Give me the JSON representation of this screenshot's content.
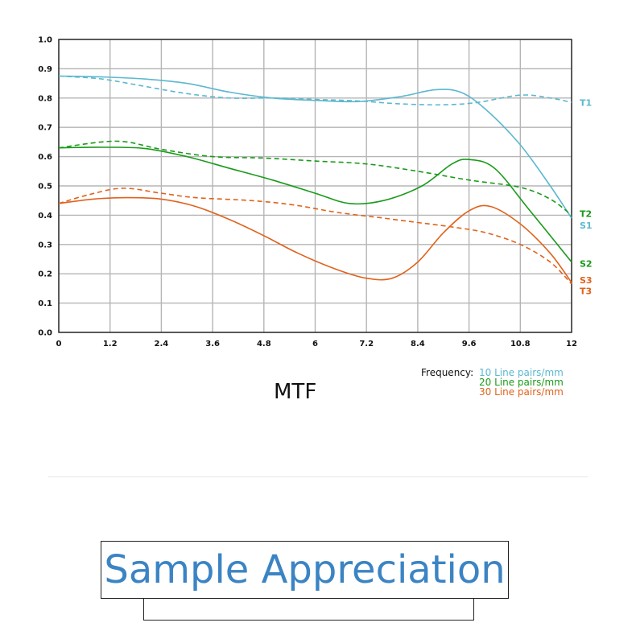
{
  "chart_data": {
    "type": "line",
    "title": "MTF",
    "xlabel": "",
    "ylabel": "",
    "xlim": [
      0,
      12
    ],
    "ylim": [
      0,
      1.0
    ],
    "x_ticks": [
      "0",
      "1.2",
      "2.4",
      "3.6",
      "4.8",
      "6",
      "7.2",
      "8.4",
      "9.6",
      "10.8",
      "12"
    ],
    "y_ticks": [
      "0.0",
      "0.1",
      "0.2",
      "0.3",
      "0.4",
      "0.5",
      "0.6",
      "0.7",
      "0.8",
      "0.9",
      "1.0"
    ],
    "grid": true,
    "legend": {
      "label": "Frequency:",
      "items": [
        "10 Line pairs/mm",
        "20 Line pairs/mm",
        "30 Line pairs/mm"
      ],
      "colors": [
        "#5bb8cf",
        "#1a9a1a",
        "#e0621c"
      ]
    },
    "series": [
      {
        "name": "S1",
        "style": "solid",
        "color": "#5bb8cf",
        "label_y": 0.365,
        "points": [
          [
            0,
            0.875
          ],
          [
            1,
            0.872
          ],
          [
            2,
            0.865
          ],
          [
            3,
            0.85
          ],
          [
            4,
            0.82
          ],
          [
            5,
            0.8
          ],
          [
            6,
            0.792
          ],
          [
            7,
            0.788
          ],
          [
            8,
            0.805
          ],
          [
            8.8,
            0.828
          ],
          [
            9.4,
            0.82
          ],
          [
            10,
            0.76
          ],
          [
            10.8,
            0.64
          ],
          [
            11.5,
            0.5
          ],
          [
            12,
            0.39
          ]
        ]
      },
      {
        "name": "T1",
        "style": "dashed",
        "color": "#5bb8cf",
        "label_y": 0.785,
        "points": [
          [
            0,
            0.875
          ],
          [
            1,
            0.865
          ],
          [
            2,
            0.84
          ],
          [
            3,
            0.815
          ],
          [
            4,
            0.8
          ],
          [
            5,
            0.8
          ],
          [
            6,
            0.795
          ],
          [
            7,
            0.79
          ],
          [
            8,
            0.78
          ],
          [
            9,
            0.777
          ],
          [
            9.8,
            0.785
          ],
          [
            10.8,
            0.81
          ],
          [
            11.5,
            0.8
          ],
          [
            12,
            0.785
          ]
        ]
      },
      {
        "name": "S2",
        "style": "solid",
        "color": "#1a9a1a",
        "label_y": 0.235,
        "points": [
          [
            0,
            0.63
          ],
          [
            1,
            0.632
          ],
          [
            2,
            0.628
          ],
          [
            3,
            0.6
          ],
          [
            4,
            0.56
          ],
          [
            5,
            0.52
          ],
          [
            6,
            0.475
          ],
          [
            6.8,
            0.44
          ],
          [
            7.6,
            0.45
          ],
          [
            8.5,
            0.5
          ],
          [
            9.2,
            0.575
          ],
          [
            9.6,
            0.59
          ],
          [
            10.2,
            0.56
          ],
          [
            11,
            0.42
          ],
          [
            12,
            0.24
          ]
        ]
      },
      {
        "name": "T2",
        "style": "dashed",
        "color": "#1a9a1a",
        "label_y": 0.405,
        "points": [
          [
            0,
            0.63
          ],
          [
            1,
            0.65
          ],
          [
            1.6,
            0.65
          ],
          [
            2.4,
            0.625
          ],
          [
            3.6,
            0.6
          ],
          [
            4.8,
            0.595
          ],
          [
            6,
            0.585
          ],
          [
            7.2,
            0.575
          ],
          [
            8.4,
            0.55
          ],
          [
            9.6,
            0.52
          ],
          [
            10.8,
            0.495
          ],
          [
            11.5,
            0.455
          ],
          [
            12,
            0.4
          ]
        ]
      },
      {
        "name": "S3",
        "style": "solid",
        "color": "#e0621c",
        "label_y": 0.178,
        "points": [
          [
            0,
            0.44
          ],
          [
            0.8,
            0.455
          ],
          [
            1.6,
            0.46
          ],
          [
            2.4,
            0.455
          ],
          [
            3.2,
            0.43
          ],
          [
            4,
            0.385
          ],
          [
            4.8,
            0.33
          ],
          [
            5.6,
            0.27
          ],
          [
            6.5,
            0.215
          ],
          [
            7.2,
            0.185
          ],
          [
            7.8,
            0.185
          ],
          [
            8.4,
            0.24
          ],
          [
            9,
            0.34
          ],
          [
            9.6,
            0.415
          ],
          [
            10.1,
            0.43
          ],
          [
            10.8,
            0.37
          ],
          [
            11.5,
            0.27
          ],
          [
            12,
            0.17
          ]
        ]
      },
      {
        "name": "T3",
        "style": "dashed",
        "color": "#e0621c",
        "label_y": 0.142,
        "points": [
          [
            0,
            0.44
          ],
          [
            0.7,
            0.47
          ],
          [
            1.5,
            0.492
          ],
          [
            2.4,
            0.475
          ],
          [
            3.2,
            0.46
          ],
          [
            4.5,
            0.45
          ],
          [
            5.5,
            0.435
          ],
          [
            6.5,
            0.41
          ],
          [
            7.6,
            0.39
          ],
          [
            8.4,
            0.375
          ],
          [
            9.2,
            0.36
          ],
          [
            10,
            0.34
          ],
          [
            10.8,
            0.3
          ],
          [
            11.5,
            0.24
          ],
          [
            12,
            0.165
          ]
        ]
      }
    ]
  },
  "banner": {
    "text": "Sample Appreciation"
  }
}
